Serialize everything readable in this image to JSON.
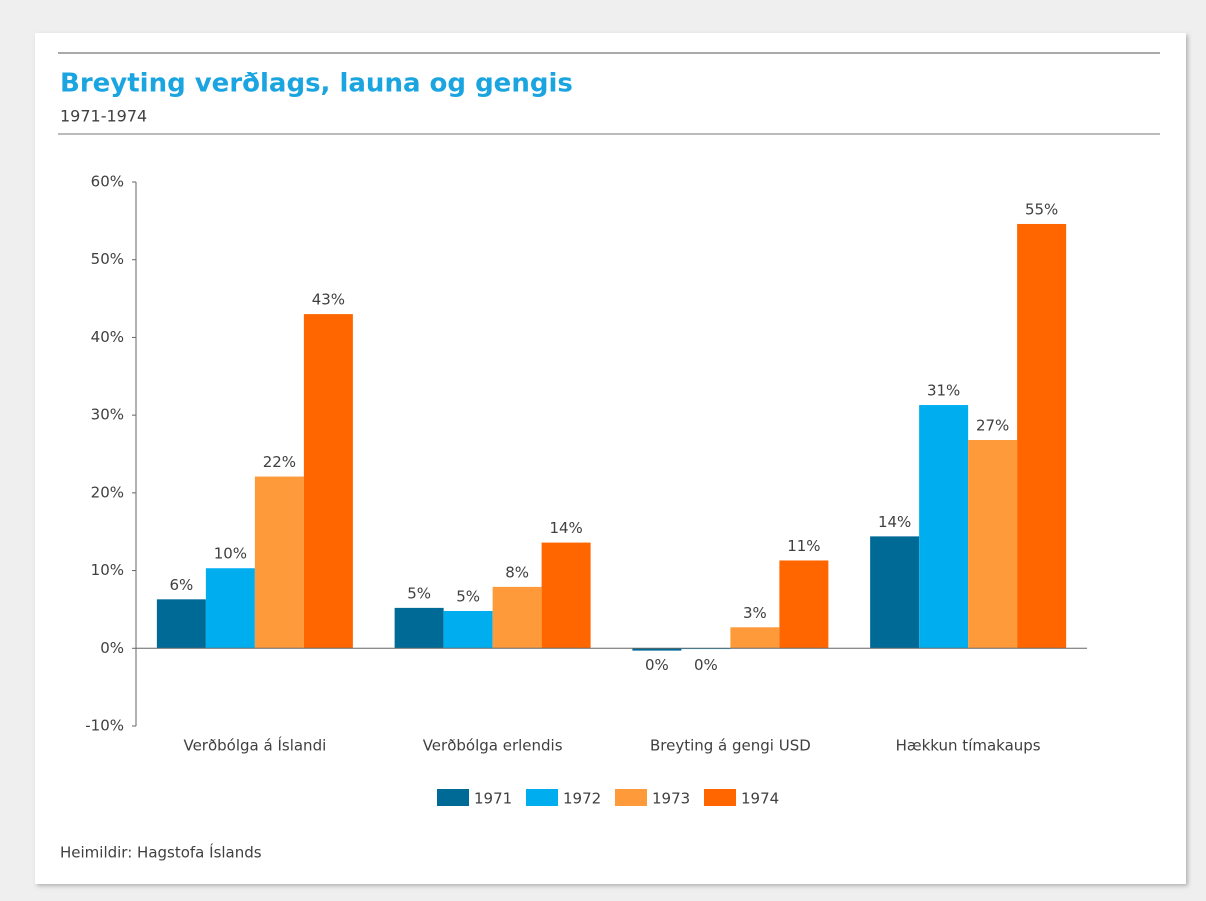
{
  "chart_data": {
    "type": "bar",
    "title": "Breyting verðlags, launa og gengis",
    "subtitle": "1971-1974",
    "source": "Heimildir: Hagstofa Íslands",
    "categories": [
      "Verðbólga á Íslandi",
      "Verðbólga erlendis",
      "Breyting á gengi USD",
      "Hækkun tímakaups"
    ],
    "series": [
      {
        "name": "1971",
        "color": "#006a96",
        "values": [
          6.3,
          5.2,
          -0.3,
          14.4
        ],
        "value_labels": [
          "6%",
          "5%",
          "0%",
          "14%"
        ]
      },
      {
        "name": "1972",
        "color": "#00aeef",
        "values": [
          10.3,
          4.8,
          -0.1,
          31.3
        ],
        "value_labels": [
          "10%",
          "5%",
          "0%",
          "31%"
        ]
      },
      {
        "name": "1973",
        "color": "#ff9a3a",
        "values": [
          22.1,
          7.9,
          2.7,
          26.8
        ],
        "value_labels": [
          "22%",
          "8%",
          "3%",
          "27%"
        ]
      },
      {
        "name": "1974",
        "color": "#ff6600",
        "values": [
          43.0,
          13.6,
          11.3,
          54.6
        ],
        "value_labels": [
          "43%",
          "14%",
          "11%",
          "55%"
        ]
      }
    ],
    "ylim": [
      -10,
      60
    ],
    "yticks": [
      {
        "value": -10,
        "label": "-10%"
      },
      {
        "value": 0,
        "label": "0%"
      },
      {
        "value": 10,
        "label": "10%"
      },
      {
        "value": 20,
        "label": "20%"
      },
      {
        "value": 30,
        "label": "30%"
      },
      {
        "value": 40,
        "label": "40%"
      },
      {
        "value": 50,
        "label": "50%"
      },
      {
        "value": 60,
        "label": "60%"
      }
    ],
    "grid": false,
    "legend": "bottom"
  }
}
